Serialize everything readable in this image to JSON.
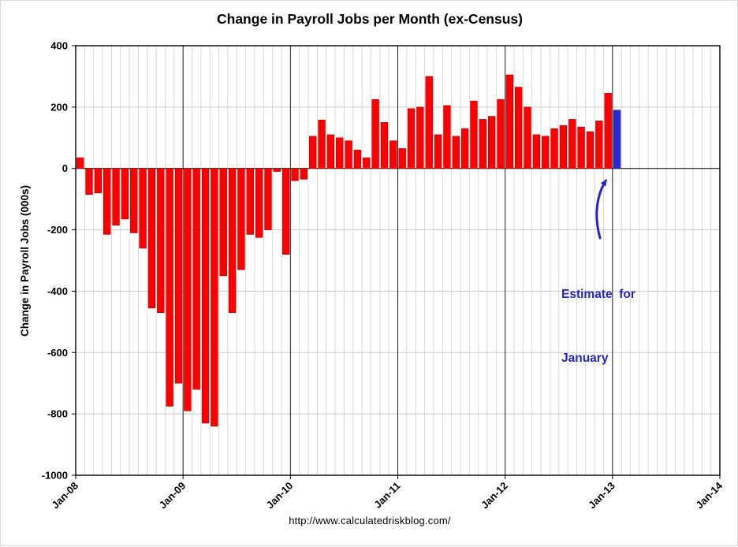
{
  "page": {
    "title": "Change in Payroll Jobs per Month (ex-Census)",
    "footer_url": "http://www.calculatedriskblog.com/"
  },
  "annotation": {
    "line1": "Estimate  for",
    "line2": "January",
    "color": "#2323cc"
  },
  "chart_data": {
    "type": "bar",
    "title": "Change in Payroll Jobs per Month (ex-Census)",
    "xlabel": "",
    "ylabel": "Change in Payroll Jobs (000s)",
    "ylim": [
      -1000,
      400
    ],
    "ytick_interval": 200,
    "y_tick_labels": [
      "400",
      "200",
      "0",
      "-200",
      "-400",
      "-600",
      "-800",
      "-1000"
    ],
    "x_tick_labels": [
      "Jan-08",
      "Jan-09",
      "Jan-10",
      "Jan-11",
      "Jan-12",
      "Jan-13",
      "Jan-14"
    ],
    "x_axis_span_months": 72,
    "grid": true,
    "legend": "none",
    "bar_color": "#ff0000",
    "estimate_color": "#2a2ad0",
    "estimate_month": "Jan-13",
    "months": [
      "Jan-08",
      "Feb-08",
      "Mar-08",
      "Apr-08",
      "May-08",
      "Jun-08",
      "Jul-08",
      "Aug-08",
      "Sep-08",
      "Oct-08",
      "Nov-08",
      "Dec-08",
      "Jan-09",
      "Feb-09",
      "Mar-09",
      "Apr-09",
      "May-09",
      "Jun-09",
      "Jul-09",
      "Aug-09",
      "Sep-09",
      "Oct-09",
      "Nov-09",
      "Dec-09",
      "Jan-10",
      "Feb-10",
      "Mar-10",
      "Apr-10",
      "May-10",
      "Jun-10",
      "Jul-10",
      "Aug-10",
      "Sep-10",
      "Oct-10",
      "Nov-10",
      "Dec-10",
      "Jan-11",
      "Feb-11",
      "Mar-11",
      "Apr-11",
      "May-11",
      "Jun-11",
      "Jul-11",
      "Aug-11",
      "Sep-11",
      "Oct-11",
      "Nov-11",
      "Dec-11",
      "Jan-12",
      "Feb-12",
      "Mar-12",
      "Apr-12",
      "May-12",
      "Jun-12",
      "Jul-12",
      "Aug-12",
      "Sep-12",
      "Oct-12",
      "Nov-12",
      "Dec-12",
      "Jan-13"
    ],
    "values": [
      35,
      -85,
      -80,
      -215,
      -185,
      -165,
      -210,
      -260,
      -455,
      -470,
      -775,
      -700,
      -790,
      -720,
      -830,
      -840,
      -350,
      -470,
      -330,
      -215,
      -225,
      -200,
      -10,
      -280,
      -40,
      -35,
      105,
      158,
      110,
      100,
      90,
      60,
      35,
      225,
      150,
      90,
      65,
      195,
      200,
      300,
      110,
      205,
      105,
      130,
      220,
      160,
      170,
      225,
      305,
      265,
      200,
      110,
      105,
      130,
      140,
      160,
      135,
      120,
      155,
      245,
      190
    ]
  }
}
